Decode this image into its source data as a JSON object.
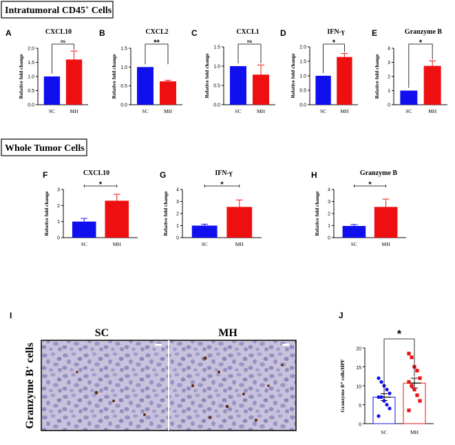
{
  "sections": {
    "top": {
      "text": "Intratumoral CD45",
      "sup": "+",
      "tail": " Cells"
    },
    "middle": {
      "text": "Whole Tumor Cells"
    }
  },
  "colors": {
    "sc": "#1010ee",
    "mh": "#ee1010",
    "bg": "#ffffff"
  },
  "chart_data": [
    {
      "id": "A",
      "type": "bar",
      "title": "CXCL10",
      "ylabel": "Relative fold change",
      "categories": [
        "SC",
        "MH"
      ],
      "values": [
        1.0,
        1.6
      ],
      "errors": [
        0,
        0.3
      ],
      "ylim": [
        0,
        2.0
      ],
      "yticks": [
        "0.0",
        "0.5",
        "1.0",
        "1.5",
        "2.0"
      ],
      "significance": "ns"
    },
    {
      "id": "B",
      "type": "bar",
      "title": "CXCL2",
      "ylabel": "Relative fold change",
      "categories": [
        "SC",
        "MH"
      ],
      "values": [
        1.0,
        0.62
      ],
      "errors": [
        0,
        0.03
      ],
      "ylim": [
        0,
        1.5
      ],
      "yticks": [
        "0.0",
        "0.5",
        "1.0",
        "1.5"
      ],
      "significance": "**"
    },
    {
      "id": "C",
      "type": "bar",
      "title": "CXCL1",
      "ylabel": "Relative fold change",
      "categories": [
        "SC",
        "MH"
      ],
      "values": [
        1.0,
        0.78
      ],
      "errors": [
        0,
        0.25
      ],
      "ylim": [
        0,
        1.5
      ],
      "yticks": [
        "0.0",
        "0.5",
        "1.0",
        "1.5"
      ],
      "significance": "ns"
    },
    {
      "id": "D",
      "type": "bar",
      "title": "IFN-γ",
      "ylabel": "Relative fold change",
      "categories": [
        "SC",
        "MH"
      ],
      "values": [
        1.0,
        1.65
      ],
      "errors": [
        0,
        0.12
      ],
      "ylim": [
        0,
        2.0
      ],
      "yticks": [
        "0.0",
        "0.5",
        "1.0",
        "1.5",
        "2.0"
      ],
      "significance": "*"
    },
    {
      "id": "E",
      "type": "bar",
      "title": "Granzyme B",
      "ylabel": "Relative fold change",
      "categories": [
        "SC",
        "MH"
      ],
      "values": [
        1.0,
        2.75
      ],
      "errors": [
        0,
        0.35
      ],
      "ylim": [
        0,
        4
      ],
      "yticks": [
        "0",
        "1",
        "2",
        "3",
        "4"
      ],
      "significance": "*"
    },
    {
      "id": "F",
      "type": "bar",
      "title": "CXCL10",
      "ylabel": "Relative fold change",
      "categories": [
        "SC",
        "MH"
      ],
      "values": [
        1.0,
        2.3
      ],
      "errors": [
        0.2,
        0.4
      ],
      "ylim": [
        0,
        3
      ],
      "yticks": [
        "0",
        "1",
        "2",
        "3"
      ],
      "significance": "*"
    },
    {
      "id": "G",
      "type": "bar",
      "title": "IFN-γ",
      "ylabel": "Relative fold change",
      "categories": [
        "SC",
        "MH"
      ],
      "values": [
        1.0,
        2.55
      ],
      "errors": [
        0.12,
        0.58
      ],
      "ylim": [
        0,
        4
      ],
      "yticks": [
        "0",
        "1",
        "2",
        "3",
        "4"
      ],
      "significance": "*"
    },
    {
      "id": "H",
      "type": "bar",
      "title": "Granzyme B",
      "ylabel": "Relative fold change",
      "categories": [
        "SC",
        "MH"
      ],
      "values": [
        0.97,
        2.55
      ],
      "errors": [
        0.12,
        0.65
      ],
      "ylim": [
        0,
        4
      ],
      "yticks": [
        "0",
        "1",
        "2",
        "3",
        "4"
      ],
      "significance": "*"
    },
    {
      "id": "J",
      "type": "scatter-bar",
      "title": "",
      "ylabel": "Granzyme B⁺ cells/HPF",
      "categories": [
        "SC",
        "MH"
      ],
      "values": [
        7.0,
        10.7
      ],
      "errors": [
        0.9,
        1.3
      ],
      "ylim": [
        0,
        20
      ],
      "yticks": [
        "0",
        "5",
        "10",
        "15",
        "20"
      ],
      "significance": "*",
      "points": [
        [
          12,
          11,
          10,
          9,
          8,
          7,
          7,
          6,
          5,
          4,
          2
        ],
        [
          18.5,
          17.5,
          15,
          14,
          12,
          11,
          10,
          9,
          7.5,
          6,
          3.5
        ]
      ]
    }
  ],
  "micrograph": {
    "letter": "I",
    "ylabel": "Granzyme B",
    "ylabel_sup": "+",
    "ylabel_tail": " cells",
    "panels": [
      "SC",
      "MH"
    ]
  }
}
